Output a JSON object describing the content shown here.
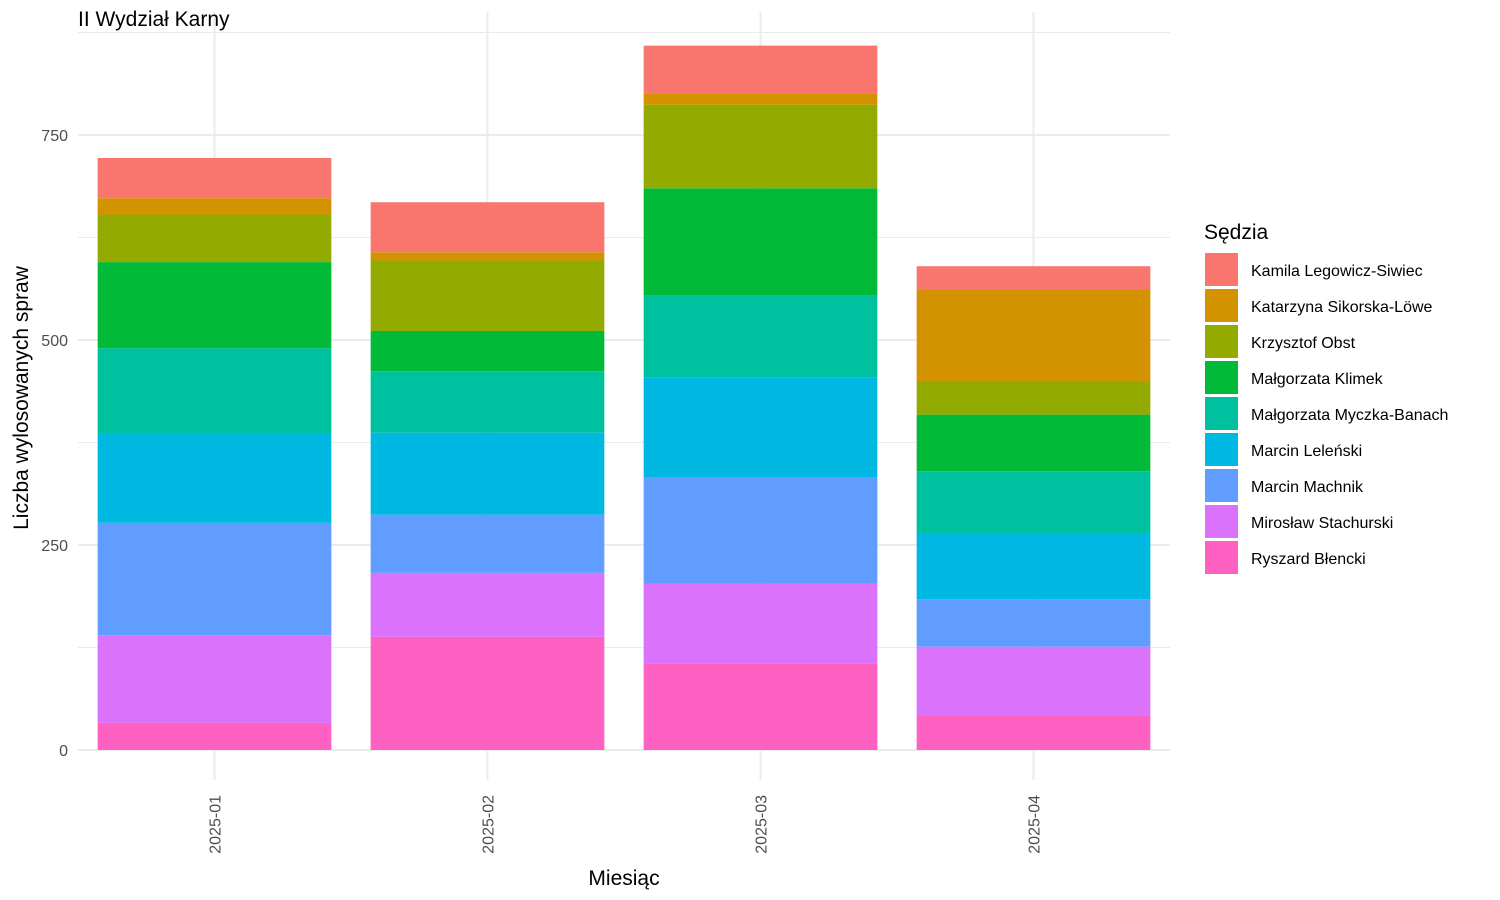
{
  "chart_data": {
    "type": "bar",
    "stacked": true,
    "title": "II Wydział Karny",
    "xlabel": "Miesiąc",
    "ylabel": "Liczba wylosowanych spraw",
    "categories": [
      "2025-01",
      "2025-02",
      "2025-03",
      "2025-04"
    ],
    "ylim": [
      -25,
      900
    ],
    "yticks": [
      0,
      250,
      500,
      750
    ],
    "grid": true,
    "legend_title": "Sędzia",
    "legend_position": "right",
    "series": [
      {
        "name": "Ryszard Błencki",
        "color": "#FF61C3",
        "values": [
          33,
          138,
          105,
          42
        ]
      },
      {
        "name": "Mirosław Stachurski",
        "color": "#DB72FB",
        "values": [
          107,
          78,
          98,
          84
        ]
      },
      {
        "name": "Marcin Machnik",
        "color": "#619CFF",
        "values": [
          137,
          71,
          129,
          58
        ]
      },
      {
        "name": "Marcin Leleński",
        "color": "#00B9E3",
        "values": [
          109,
          100,
          122,
          80
        ]
      },
      {
        "name": "Małgorzata Myczka-Banach",
        "color": "#00C19F",
        "values": [
          104,
          75,
          100,
          76
        ]
      },
      {
        "name": "Małgorzata Klimek",
        "color": "#00BA38",
        "values": [
          105,
          49,
          131,
          69
        ]
      },
      {
        "name": "Krzysztof Obst",
        "color": "#93AA00",
        "values": [
          58,
          86,
          102,
          41
        ]
      },
      {
        "name": "Katarzyna Sikorska-Löwe",
        "color": "#D39200",
        "values": [
          20,
          10,
          14,
          111
        ]
      },
      {
        "name": "Kamila Legowicz-Siwiec",
        "color": "#F8766D",
        "values": [
          49,
          61,
          58,
          29
        ]
      }
    ]
  }
}
